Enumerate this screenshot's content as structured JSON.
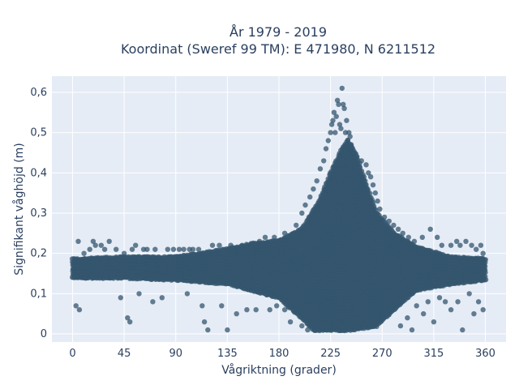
{
  "chart_data": {
    "type": "scatter",
    "title_line1": "År 1979 - 2019",
    "title_line2": "Koordinat (Sweref 99 TM): E 471980, N 6211512",
    "xlabel": "Vågriktning (grader)",
    "ylabel": "Signifikant våghöjd (m)",
    "xlim": [
      -18,
      378
    ],
    "ylim": [
      -0.02,
      0.64
    ],
    "xticks": [
      0,
      45,
      90,
      135,
      180,
      225,
      270,
      315,
      360
    ],
    "xtick_labels": [
      "0",
      "45",
      "90",
      "135",
      "180",
      "225",
      "270",
      "315",
      "360"
    ],
    "yticks": [
      0,
      0.1,
      0.2,
      0.3,
      0.4,
      0.5,
      0.6
    ],
    "ytick_labels": [
      "0",
      "0,1",
      "0,2",
      "0,3",
      "0,4",
      "0,5",
      "0,6"
    ],
    "grid": true,
    "background_color": "#e5ecf6",
    "marker_color": "#34566e",
    "band_lower": [
      [
        0,
        0.14
      ],
      [
        45,
        0.14
      ],
      [
        90,
        0.135
      ],
      [
        135,
        0.125
      ],
      [
        180,
        0.09
      ],
      [
        200,
        0.04
      ],
      [
        210,
        0.01
      ],
      [
        240,
        0.01
      ],
      [
        265,
        0.02
      ],
      [
        280,
        0.06
      ],
      [
        300,
        0.11
      ],
      [
        330,
        0.125
      ],
      [
        360,
        0.135
      ]
    ],
    "band_upper": [
      [
        0,
        0.185
      ],
      [
        45,
        0.19
      ],
      [
        90,
        0.19
      ],
      [
        135,
        0.21
      ],
      [
        160,
        0.225
      ],
      [
        180,
        0.23
      ],
      [
        200,
        0.26
      ],
      [
        215,
        0.33
      ],
      [
        225,
        0.4
      ],
      [
        235,
        0.46
      ],
      [
        240,
        0.48
      ],
      [
        248,
        0.44
      ],
      [
        255,
        0.38
      ],
      [
        265,
        0.3
      ],
      [
        280,
        0.25
      ],
      [
        300,
        0.215
      ],
      [
        330,
        0.19
      ],
      [
        360,
        0.185
      ]
    ],
    "outliers": [
      [
        3,
        0.07
      ],
      [
        5,
        0.23
      ],
      [
        6,
        0.06
      ],
      [
        10,
        0.2
      ],
      [
        15,
        0.21
      ],
      [
        18,
        0.23
      ],
      [
        20,
        0.22
      ],
      [
        25,
        0.22
      ],
      [
        28,
        0.21
      ],
      [
        32,
        0.23
      ],
      [
        38,
        0.21
      ],
      [
        42,
        0.09
      ],
      [
        45,
        0.2
      ],
      [
        48,
        0.04
      ],
      [
        50,
        0.03
      ],
      [
        52,
        0.21
      ],
      [
        55,
        0.22
      ],
      [
        58,
        0.1
      ],
      [
        62,
        0.21
      ],
      [
        65,
        0.21
      ],
      [
        70,
        0.08
      ],
      [
        72,
        0.21
      ],
      [
        78,
        0.09
      ],
      [
        83,
        0.21
      ],
      [
        88,
        0.21
      ],
      [
        93,
        0.21
      ],
      [
        97,
        0.21
      ],
      [
        100,
        0.1
      ],
      [
        102,
        0.21
      ],
      [
        105,
        0.21
      ],
      [
        110,
        0.21
      ],
      [
        113,
        0.07
      ],
      [
        115,
        0.03
      ],
      [
        118,
        0.01
      ],
      [
        122,
        0.22
      ],
      [
        128,
        0.22
      ],
      [
        130,
        0.07
      ],
      [
        135,
        0.01
      ],
      [
        138,
        0.22
      ],
      [
        143,
        0.05
      ],
      [
        148,
        0.22
      ],
      [
        152,
        0.06
      ],
      [
        157,
        0.22
      ],
      [
        160,
        0.06
      ],
      [
        163,
        0.23
      ],
      [
        168,
        0.24
      ],
      [
        172,
        0.06
      ],
      [
        176,
        0.24
      ],
      [
        185,
        0.25
      ],
      [
        195,
        0.27
      ],
      [
        200,
        0.3
      ],
      [
        203,
        0.32
      ],
      [
        207,
        0.34
      ],
      [
        210,
        0.36
      ],
      [
        213,
        0.38
      ],
      [
        216,
        0.41
      ],
      [
        219,
        0.43
      ],
      [
        221,
        0.46
      ],
      [
        223,
        0.48
      ],
      [
        225,
        0.5
      ],
      [
        226,
        0.52
      ],
      [
        227,
        0.53
      ],
      [
        228,
        0.55
      ],
      [
        229,
        0.5
      ],
      [
        230,
        0.54
      ],
      [
        231,
        0.58
      ],
      [
        232,
        0.57
      ],
      [
        233,
        0.52
      ],
      [
        234,
        0.51
      ],
      [
        235,
        0.61
      ],
      [
        236,
        0.57
      ],
      [
        237,
        0.56
      ],
      [
        238,
        0.5
      ],
      [
        239,
        0.53
      ],
      [
        240,
        0.48
      ],
      [
        241,
        0.5
      ],
      [
        242,
        0.49
      ],
      [
        243,
        0.47
      ],
      [
        244,
        0.46
      ],
      [
        246,
        0.45
      ],
      [
        248,
        0.44
      ],
      [
        252,
        0.43
      ],
      [
        256,
        0.42
      ],
      [
        258,
        0.4
      ],
      [
        260,
        0.39
      ],
      [
        262,
        0.37
      ],
      [
        264,
        0.35
      ],
      [
        266,
        0.33
      ],
      [
        268,
        0.31
      ],
      [
        272,
        0.29
      ],
      [
        276,
        0.28
      ],
      [
        280,
        0.27
      ],
      [
        284,
        0.26
      ],
      [
        288,
        0.25
      ],
      [
        293,
        0.24
      ],
      [
        298,
        0.23
      ],
      [
        305,
        0.24
      ],
      [
        312,
        0.26
      ],
      [
        318,
        0.24
      ],
      [
        322,
        0.22
      ],
      [
        330,
        0.22
      ],
      [
        335,
        0.23
      ],
      [
        338,
        0.22
      ],
      [
        343,
        0.23
      ],
      [
        348,
        0.22
      ],
      [
        352,
        0.21
      ],
      [
        356,
        0.22
      ],
      [
        358,
        0.2
      ],
      [
        300,
        0.07
      ],
      [
        306,
        0.05
      ],
      [
        310,
        0.08
      ],
      [
        315,
        0.03
      ],
      [
        320,
        0.09
      ],
      [
        325,
        0.08
      ],
      [
        330,
        0.06
      ],
      [
        336,
        0.08
      ],
      [
        340,
        0.01
      ],
      [
        346,
        0.1
      ],
      [
        350,
        0.05
      ],
      [
        354,
        0.08
      ],
      [
        358,
        0.06
      ],
      [
        286,
        0.02
      ],
      [
        292,
        0.04
      ],
      [
        296,
        0.01
      ],
      [
        200,
        0.02
      ],
      [
        205,
        0.01
      ],
      [
        212,
        0.01
      ],
      [
        190,
        0.03
      ],
      [
        185,
        0.06
      ],
      [
        178,
        0.07
      ]
    ]
  }
}
